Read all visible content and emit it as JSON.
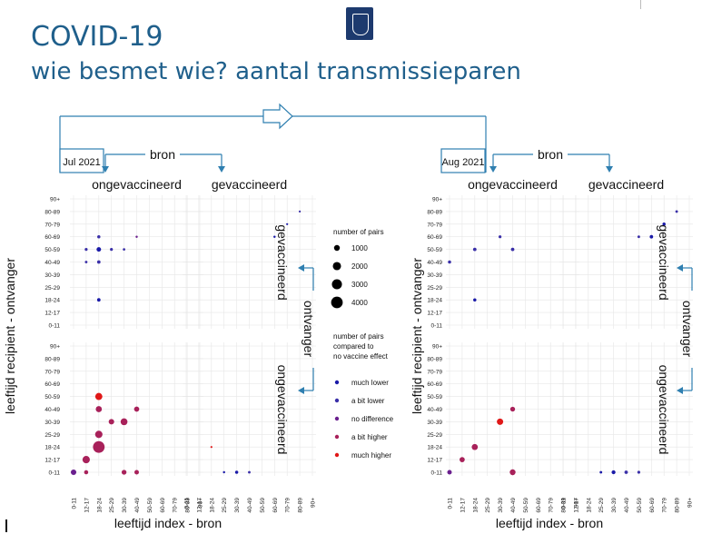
{
  "header": {
    "title": "COVID-19",
    "subtitle": "wie besmet wie? aantal transmissieparen"
  },
  "colors": {
    "title": "#1f5f8b",
    "frame": "#2f7fb0",
    "much_lower": "#1a1aa8",
    "a_bit_lower": "#3a2fa8",
    "no_difference": "#6a1f8e",
    "a_bit_higher": "#a8215a",
    "much_higher": "#e01818"
  },
  "labels": {
    "bron": "bron",
    "ongevaccineerd": "ongevaccineerd",
    "gevaccineerd": "gevaccineerd",
    "ontvanger": "ontvanger",
    "ylabel": "leeftijd recipient - ontvanger",
    "xlabel": "leeftijd index - bron"
  },
  "legend": {
    "size_title_lines": [
      "number of pairs"
    ],
    "size_entries": [
      "1000",
      "2000",
      "3000",
      "4000"
    ],
    "size_values": [
      1000,
      2000,
      3000,
      4000
    ],
    "color_title_lines": [
      "number of pairs",
      "compared to",
      "no vaccine effect"
    ],
    "color_entries": [
      "much lower",
      "a bit lower",
      "no difference",
      "a bit higher",
      "much higher"
    ]
  },
  "chart_data": [
    {
      "type": "scatter",
      "period_label": "Jul 2021",
      "age_groups": [
        "0-11",
        "12-17",
        "18-24",
        "25-29",
        "30-39",
        "40-49",
        "50-59",
        "60-69",
        "70-79",
        "80-89",
        "90+"
      ],
      "panels": [
        {
          "source": "ongevaccineerd",
          "recipient": "gevaccineerd",
          "points": [
            {
              "x": "18-24",
              "y": "50-59",
              "pairs": 600,
              "effect": "much lower"
            },
            {
              "x": "12-17",
              "y": "50-59",
              "pairs": 250,
              "effect": "a bit lower"
            },
            {
              "x": "25-29",
              "y": "50-59",
              "pairs": 250,
              "effect": "a bit lower"
            },
            {
              "x": "18-24",
              "y": "40-49",
              "pairs": 350,
              "effect": "a bit lower"
            },
            {
              "x": "18-24",
              "y": "60-69",
              "pairs": 300,
              "effect": "a bit lower"
            },
            {
              "x": "12-17",
              "y": "40-49",
              "pairs": 200,
              "effect": "a bit lower"
            },
            {
              "x": "18-24",
              "y": "18-24",
              "pairs": 350,
              "effect": "much lower"
            },
            {
              "x": "30-39",
              "y": "50-59",
              "pairs": 180,
              "effect": "a bit lower"
            },
            {
              "x": "40-49",
              "y": "60-69",
              "pairs": 150,
              "effect": "no difference"
            }
          ]
        },
        {
          "source": "gevaccineerd",
          "recipient": "gevaccineerd",
          "points": [
            {
              "x": "60-69",
              "y": "60-69",
              "pairs": 150,
              "effect": "much lower"
            },
            {
              "x": "70-79",
              "y": "70-79",
              "pairs": 120,
              "effect": "much lower"
            },
            {
              "x": "80-89",
              "y": "80-89",
              "pairs": 120,
              "effect": "a bit lower"
            }
          ]
        },
        {
          "source": "ongevaccineerd",
          "recipient": "ongevaccineerd",
          "points": [
            {
              "x": "18-24",
              "y": "18-24",
              "pairs": 4000,
              "effect": "a bit higher"
            },
            {
              "x": "18-24",
              "y": "25-29",
              "pairs": 1600,
              "effect": "a bit higher"
            },
            {
              "x": "12-17",
              "y": "12-17",
              "pairs": 1600,
              "effect": "a bit higher"
            },
            {
              "x": "18-24",
              "y": "50-59",
              "pairs": 1500,
              "effect": "much higher"
            },
            {
              "x": "18-24",
              "y": "40-49",
              "pairs": 1100,
              "effect": "a bit higher"
            },
            {
              "x": "30-39",
              "y": "30-39",
              "pairs": 1400,
              "effect": "a bit higher"
            },
            {
              "x": "0-11",
              "y": "0-11",
              "pairs": 900,
              "effect": "no difference"
            },
            {
              "x": "25-29",
              "y": "30-39",
              "pairs": 900,
              "effect": "a bit higher"
            },
            {
              "x": "40-49",
              "y": "40-49",
              "pairs": 800,
              "effect": "a bit higher"
            },
            {
              "x": "30-39",
              "y": "0-11",
              "pairs": 700,
              "effect": "a bit higher"
            },
            {
              "x": "40-49",
              "y": "0-11",
              "pairs": 600,
              "effect": "a bit higher"
            },
            {
              "x": "12-17",
              "y": "0-11",
              "pairs": 500,
              "effect": "a bit higher"
            }
          ]
        },
        {
          "source": "gevaccineerd",
          "recipient": "ongevaccineerd",
          "points": [
            {
              "x": "30-39",
              "y": "0-11",
              "pairs": 300,
              "effect": "much lower"
            },
            {
              "x": "40-49",
              "y": "0-11",
              "pairs": 200,
              "effect": "a bit lower"
            },
            {
              "x": "25-29",
              "y": "0-11",
              "pairs": 150,
              "effect": "much lower"
            },
            {
              "x": "18-24",
              "y": "18-24",
              "pairs": 120,
              "effect": "much higher"
            }
          ]
        }
      ]
    },
    {
      "type": "scatter",
      "period_label": "Aug 2021",
      "age_groups": [
        "0-11",
        "12-17",
        "18-24",
        "25-29",
        "30-39",
        "40-49",
        "50-59",
        "60-69",
        "70-79",
        "80-89",
        "90+"
      ],
      "panels": [
        {
          "source": "ongevaccineerd",
          "recipient": "gevaccineerd",
          "points": [
            {
              "x": "18-24",
              "y": "50-59",
              "pairs": 350,
              "effect": "a bit lower"
            },
            {
              "x": "40-49",
              "y": "50-59",
              "pairs": 350,
              "effect": "a bit lower"
            },
            {
              "x": "30-39",
              "y": "60-69",
              "pairs": 250,
              "effect": "a bit lower"
            },
            {
              "x": "0-11",
              "y": "40-49",
              "pairs": 300,
              "effect": "a bit lower"
            },
            {
              "x": "18-24",
              "y": "18-24",
              "pairs": 300,
              "effect": "much lower"
            }
          ]
        },
        {
          "source": "gevaccineerd",
          "recipient": "gevaccineerd",
          "points": [
            {
              "x": "60-69",
              "y": "60-69",
              "pairs": 350,
              "effect": "much lower"
            },
            {
              "x": "70-79",
              "y": "70-79",
              "pairs": 300,
              "effect": "much lower"
            },
            {
              "x": "50-59",
              "y": "60-69",
              "pairs": 200,
              "effect": "a bit lower"
            },
            {
              "x": "80-89",
              "y": "80-89",
              "pairs": 200,
              "effect": "a bit lower"
            }
          ]
        },
        {
          "source": "ongevaccineerd",
          "recipient": "ongevaccineerd",
          "points": [
            {
              "x": "30-39",
              "y": "30-39",
              "pairs": 1200,
              "effect": "much higher"
            },
            {
              "x": "18-24",
              "y": "18-24",
              "pairs": 1100,
              "effect": "a bit higher"
            },
            {
              "x": "40-49",
              "y": "0-11",
              "pairs": 1000,
              "effect": "a bit higher"
            },
            {
              "x": "12-17",
              "y": "12-17",
              "pairs": 800,
              "effect": "a bit higher"
            },
            {
              "x": "40-49",
              "y": "40-49",
              "pairs": 700,
              "effect": "a bit higher"
            },
            {
              "x": "0-11",
              "y": "0-11",
              "pairs": 600,
              "effect": "no difference"
            }
          ]
        },
        {
          "source": "gevaccineerd",
          "recipient": "ongevaccineerd",
          "points": [
            {
              "x": "30-39",
              "y": "0-11",
              "pairs": 450,
              "effect": "much lower"
            },
            {
              "x": "40-49",
              "y": "0-11",
              "pairs": 350,
              "effect": "a bit lower"
            },
            {
              "x": "50-59",
              "y": "0-11",
              "pairs": 250,
              "effect": "a bit lower"
            },
            {
              "x": "25-29",
              "y": "0-11",
              "pairs": 200,
              "effect": "much lower"
            }
          ]
        }
      ]
    }
  ]
}
